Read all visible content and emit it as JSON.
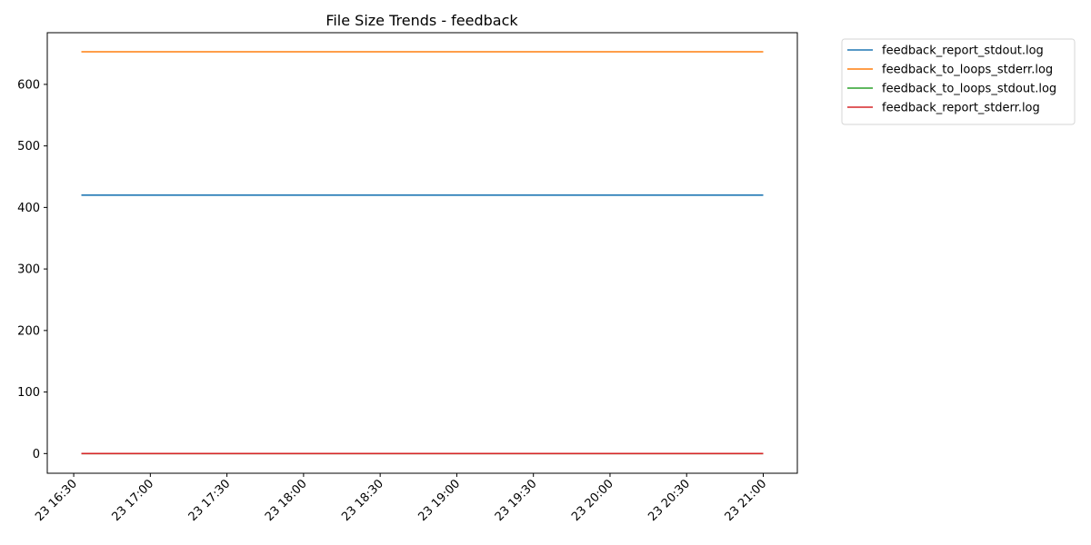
{
  "chart_data": {
    "type": "line",
    "title": "File Size Trends - feedback",
    "xlabel": "",
    "ylabel": "",
    "x_range": [
      "23 16:33",
      "23 21:00"
    ],
    "x_ticks": [
      "23 16:30",
      "23 17:00",
      "23 17:30",
      "23 18:00",
      "23 18:30",
      "23 19:00",
      "23 19:30",
      "23 20:00",
      "23 20:30",
      "23 21:00"
    ],
    "y_ticks": [
      0,
      100,
      200,
      300,
      400,
      500,
      600
    ],
    "ylim": [
      -32,
      684
    ],
    "grid": false,
    "legend_position": "outside-top-right",
    "series": [
      {
        "name": "feedback_report_stdout.log",
        "color": "#1f77b4",
        "x": [
          "23 16:33",
          "23 21:00"
        ],
        "values": [
          420,
          420
        ]
      },
      {
        "name": "feedback_to_loops_stderr.log",
        "color": "#ff7f0e",
        "x": [
          "23 16:33",
          "23 21:00"
        ],
        "values": [
          653,
          653
        ]
      },
      {
        "name": "feedback_to_loops_stdout.log",
        "color": "#2ca02c",
        "x": [
          "23 16:33",
          "23 21:00"
        ],
        "values": [
          0,
          0
        ]
      },
      {
        "name": "feedback_report_stderr.log",
        "color": "#d62728",
        "x": [
          "23 16:33",
          "23 21:00"
        ],
        "values": [
          0,
          0
        ]
      }
    ]
  }
}
